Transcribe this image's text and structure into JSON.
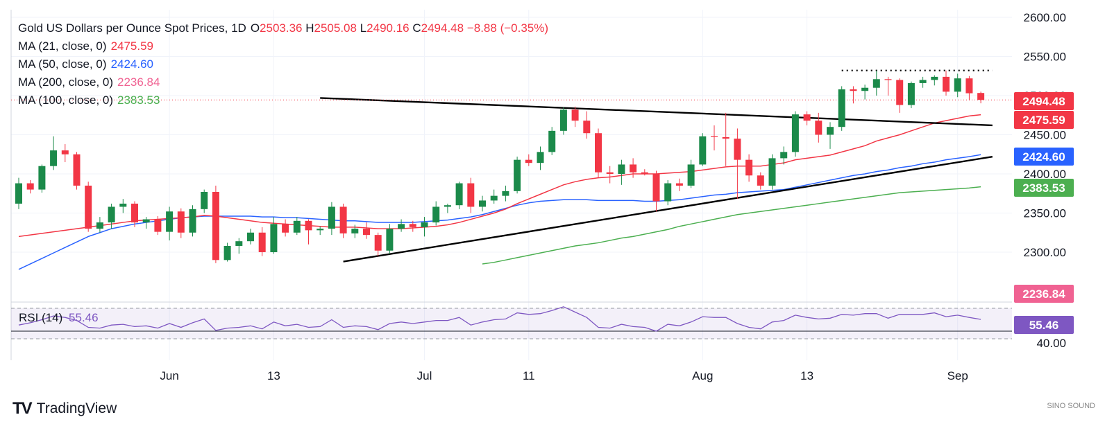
{
  "title": {
    "symbol": "Gold US Dollars per Ounce Spot Prices, 1D",
    "o_label": "O",
    "o": "2503.36",
    "h_label": "H",
    "h": "2505.08",
    "l_label": "L",
    "l": "2490.16",
    "c_label": "C",
    "c": "2494.48",
    "change": "−8.88 (−0.35%)"
  },
  "legend": [
    {
      "label": "MA (21, close, 0)",
      "value": "2475.59",
      "color": "#f23645"
    },
    {
      "label": "MA (50, close, 0)",
      "value": "2424.60",
      "color": "#2962ff"
    },
    {
      "label": "MA (200, close, 0)",
      "value": "2236.84",
      "color": "#f06292"
    },
    {
      "label": "MA (100, close, 0)",
      "value": "2383.53",
      "color": "#4caf50"
    }
  ],
  "rsi_legend": {
    "label": "RSI (14)",
    "value": "55.46",
    "color": "#7e57c2"
  },
  "colors": {
    "up": "#26a69a",
    "upBody": "#1b8a4a",
    "down": "#f23645",
    "grid": "#f0f3fa",
    "text": "#131722"
  },
  "footer": {
    "brand": "TradingView",
    "logo": "TV",
    "watermark": "SINO SOUND"
  },
  "chart_data": {
    "type": "candlestick",
    "price_axis": {
      "ticks": [
        2300,
        2350,
        2400,
        2450,
        2500,
        2550,
        2600
      ],
      "tick_labels": [
        "2300.00",
        "2350.00",
        "2400.00",
        "2450.00",
        "2500.00",
        "2550.00",
        "2600.00"
      ]
    },
    "rsi_axis": {
      "ticks": [
        40
      ],
      "tick_labels": [
        "40.00"
      ],
      "bands": [
        30,
        70
      ]
    },
    "x_tick_labels": [
      "Jun",
      "13",
      "Jul",
      "11",
      "Aug",
      "13",
      "Sep"
    ],
    "x_tick_index": [
      13,
      22,
      35,
      44,
      59,
      68,
      81
    ],
    "price_labels": [
      {
        "value": 2494.48,
        "text": "2494.48",
        "color": "#f23645"
      },
      {
        "value": 2475.59,
        "text": "2475.59",
        "color": "#f23645"
      },
      {
        "value": 2424.6,
        "text": "2424.60",
        "color": "#2962ff"
      },
      {
        "value": 2383.53,
        "text": "2383.53",
        "color": "#4caf50"
      },
      {
        "value": 2236.84,
        "text": "2236.84",
        "color": "#f06292"
      }
    ],
    "rsi_label": {
      "value": 55.46,
      "text": "55.46"
    },
    "candles": [
      [
        2362,
        2395,
        2355,
        2388
      ],
      [
        2388,
        2392,
        2375,
        2380
      ],
      [
        2380,
        2412,
        2376,
        2410
      ],
      [
        2410,
        2448,
        2405,
        2430
      ],
      [
        2430,
        2438,
        2415,
        2425
      ],
      [
        2425,
        2428,
        2380,
        2385
      ],
      [
        2385,
        2390,
        2326,
        2330
      ],
      [
        2330,
        2345,
        2325,
        2338
      ],
      [
        2338,
        2362,
        2330,
        2358
      ],
      [
        2358,
        2368,
        2350,
        2362
      ],
      [
        2362,
        2365,
        2332,
        2338
      ],
      [
        2338,
        2345,
        2330,
        2342
      ],
      [
        2342,
        2346,
        2322,
        2326
      ],
      [
        2326,
        2358,
        2315,
        2352
      ],
      [
        2352,
        2356,
        2318,
        2325
      ],
      [
        2325,
        2360,
        2320,
        2355
      ],
      [
        2355,
        2380,
        2350,
        2377
      ],
      [
        2377,
        2385,
        2286,
        2290
      ],
      [
        2290,
        2312,
        2288,
        2308
      ],
      [
        2308,
        2318,
        2298,
        2314
      ],
      [
        2314,
        2330,
        2310,
        2325
      ],
      [
        2325,
        2332,
        2295,
        2300
      ],
      [
        2300,
        2345,
        2298,
        2336
      ],
      [
        2336,
        2342,
        2320,
        2325
      ],
      [
        2325,
        2345,
        2322,
        2340
      ],
      [
        2340,
        2342,
        2310,
        2328
      ],
      [
        2328,
        2333,
        2322,
        2330
      ],
      [
        2330,
        2364,
        2322,
        2358
      ],
      [
        2358,
        2362,
        2318,
        2324
      ],
      [
        2324,
        2335,
        2318,
        2330
      ],
      [
        2330,
        2338,
        2317,
        2322
      ],
      [
        2322,
        2325,
        2295,
        2302
      ],
      [
        2302,
        2336,
        2298,
        2330
      ],
      [
        2330,
        2342,
        2326,
        2336
      ],
      [
        2336,
        2340,
        2326,
        2332
      ],
      [
        2332,
        2345,
        2320,
        2338
      ],
      [
        2338,
        2365,
        2334,
        2358
      ],
      [
        2358,
        2362,
        2350,
        2360
      ],
      [
        2360,
        2390,
        2355,
        2388
      ],
      [
        2388,
        2395,
        2350,
        2358
      ],
      [
        2358,
        2372,
        2352,
        2366
      ],
      [
        2366,
        2380,
        2362,
        2372
      ],
      [
        2372,
        2385,
        2365,
        2378
      ],
      [
        2378,
        2422,
        2375,
        2418
      ],
      [
        2418,
        2425,
        2410,
        2414
      ],
      [
        2414,
        2435,
        2405,
        2428
      ],
      [
        2428,
        2460,
        2424,
        2455
      ],
      [
        2455,
        2485,
        2450,
        2482
      ],
      [
        2482,
        2486,
        2460,
        2468
      ],
      [
        2468,
        2480,
        2445,
        2452
      ],
      [
        2452,
        2458,
        2395,
        2402
      ],
      [
        2402,
        2410,
        2388,
        2400
      ],
      [
        2400,
        2418,
        2386,
        2412
      ],
      [
        2412,
        2420,
        2395,
        2402
      ],
      [
        2402,
        2406,
        2398,
        2400
      ],
      [
        2400,
        2404,
        2352,
        2365
      ],
      [
        2365,
        2392,
        2360,
        2388
      ],
      [
        2388,
        2394,
        2378,
        2385
      ],
      [
        2385,
        2418,
        2382,
        2412
      ],
      [
        2412,
        2452,
        2410,
        2448
      ],
      [
        2448,
        2462,
        2430,
        2447
      ],
      [
        2447,
        2478,
        2410,
        2445
      ],
      [
        2445,
        2458,
        2368,
        2418
      ],
      [
        2418,
        2425,
        2390,
        2398
      ],
      [
        2398,
        2402,
        2380,
        2385
      ],
      [
        2385,
        2425,
        2380,
        2420
      ],
      [
        2420,
        2435,
        2412,
        2428
      ],
      [
        2428,
        2480,
        2422,
        2476
      ],
      [
        2476,
        2480,
        2462,
        2468
      ],
      [
        2468,
        2478,
        2440,
        2450
      ],
      [
        2450,
        2466,
        2432,
        2460
      ],
      [
        2460,
        2512,
        2455,
        2508
      ],
      [
        2508,
        2512,
        2490,
        2506
      ],
      [
        2506,
        2514,
        2495,
        2510
      ],
      [
        2510,
        2532,
        2500,
        2521
      ],
      [
        2521,
        2524,
        2500,
        2520
      ],
      [
        2520,
        2522,
        2478,
        2488
      ],
      [
        2488,
        2518,
        2484,
        2516
      ],
      [
        2516,
        2524,
        2510,
        2520
      ],
      [
        2520,
        2526,
        2513,
        2524
      ],
      [
        2524,
        2532,
        2500,
        2505
      ],
      [
        2505,
        2528,
        2498,
        2522
      ],
      [
        2522,
        2525,
        2494,
        2503
      ],
      [
        2503.36,
        2505.08,
        2490.16,
        2494.48
      ]
    ],
    "ma21": [
      2320,
      2322,
      2324,
      2326,
      2328,
      2330,
      2332,
      2334,
      2336,
      2338,
      2340,
      2341,
      2342,
      2343,
      2344,
      2345,
      2347,
      2346,
      2344,
      2342,
      2340,
      2338,
      2337,
      2336,
      2335,
      2334,
      2333,
      2332,
      2332,
      2332,
      2331,
      2330,
      2330,
      2330,
      2331,
      2332,
      2333,
      2335,
      2338,
      2342,
      2346,
      2350,
      2355,
      2362,
      2368,
      2374,
      2380,
      2386,
      2390,
      2393,
      2395,
      2396,
      2398,
      2400,
      2400,
      2400,
      2401,
      2402,
      2403,
      2405,
      2407,
      2409,
      2410,
      2410,
      2410,
      2412,
      2414,
      2418,
      2420,
      2422,
      2424,
      2428,
      2432,
      2436,
      2442,
      2446,
      2450,
      2455,
      2460,
      2465,
      2468,
      2471,
      2474,
      2475.59
    ],
    "ma50": [
      2278,
      2285,
      2292,
      2299,
      2306,
      2313,
      2320,
      2325,
      2330,
      2333,
      2336,
      2338,
      2340,
      2342,
      2344,
      2345,
      2346,
      2346,
      2346,
      2346,
      2346,
      2345,
      2345,
      2344,
      2344,
      2343,
      2342,
      2341,
      2340,
      2340,
      2339,
      2338,
      2338,
      2338,
      2338,
      2339,
      2340,
      2341,
      2343,
      2345,
      2348,
      2352,
      2356,
      2360,
      2363,
      2365,
      2366,
      2367,
      2367,
      2367,
      2366,
      2366,
      2366,
      2366,
      2365,
      2365,
      2366,
      2367,
      2369,
      2371,
      2373,
      2374,
      2376,
      2377,
      2378,
      2379,
      2380,
      2383,
      2386,
      2389,
      2392,
      2395,
      2398,
      2400,
      2403,
      2405,
      2408,
      2410,
      2413,
      2415,
      2418,
      2420,
      2422,
      2424.6
    ],
    "ma100": [
      2285,
      2287,
      2290,
      2293,
      2296,
      2299,
      2302,
      2305,
      2308,
      2310,
      2312,
      2315,
      2318,
      2320,
      2323,
      2326,
      2329,
      2333,
      2336,
      2339,
      2342,
      2345,
      2348,
      2350,
      2352,
      2354,
      2356,
      2358,
      2360,
      2362,
      2364,
      2366,
      2368,
      2370,
      2372,
      2374,
      2376,
      2377,
      2378,
      2379,
      2380,
      2381,
      2382,
      2383.53
    ],
    "ma100_start": 40,
    "trendline_upper": {
      "from": [
        26,
        2497
      ],
      "to": [
        84,
        2462
      ]
    },
    "trendline_lower": {
      "from": [
        28,
        2288
      ],
      "to": [
        84,
        2422
      ]
    },
    "resistance_dotted": {
      "from": [
        71,
        2532
      ],
      "to": [
        84,
        2532
      ]
    },
    "rsi": [
      48,
      51,
      55,
      60,
      58,
      54,
      45,
      44,
      48,
      49,
      46,
      47,
      44,
      50,
      45,
      51,
      56,
      41,
      44,
      45,
      47,
      43,
      52,
      47,
      49,
      45,
      46,
      55,
      45,
      47,
      46,
      42,
      50,
      52,
      50,
      52,
      54,
      54,
      58,
      48,
      52,
      55,
      56,
      64,
      62,
      63,
      67,
      72,
      65,
      58,
      45,
      44,
      49,
      46,
      45,
      40,
      49,
      47,
      52,
      59,
      58,
      58,
      50,
      45,
      43,
      52,
      54,
      61,
      58,
      56,
      57,
      62,
      61,
      63,
      63,
      57,
      62,
      62,
      62,
      64,
      59,
      61,
      58,
      55.46
    ]
  }
}
